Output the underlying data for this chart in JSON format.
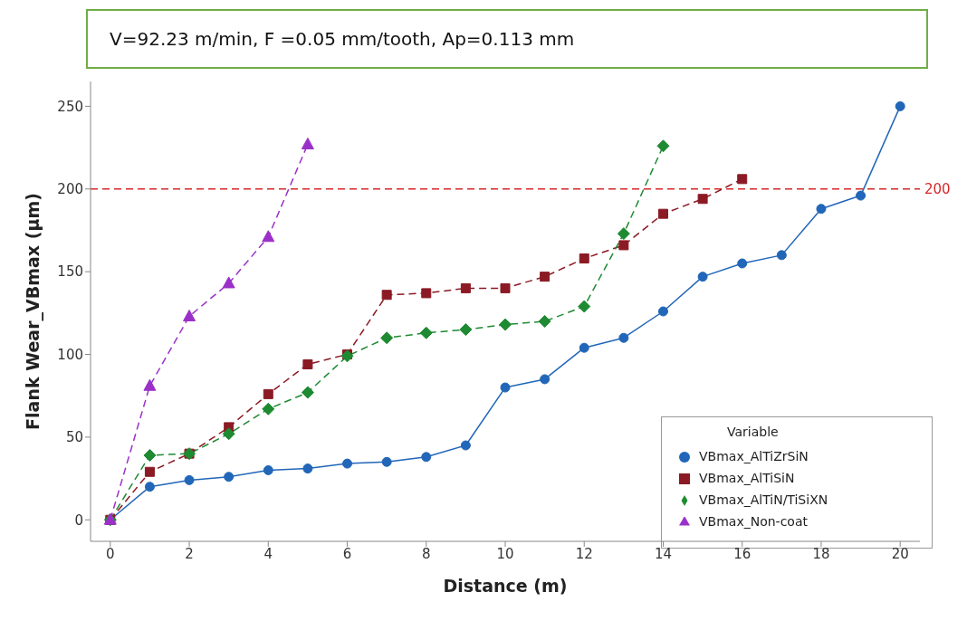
{
  "chart_data": {
    "type": "line",
    "title": "V=92.23 m/min, F =0.05 mm/tooth, Ap=0.113 mm",
    "xlabel": "Distance (m)",
    "ylabel": "Flank Wear_VBmax (µm)",
    "legend_title": "Variable",
    "legend": "bottom right",
    "grid": false,
    "xlim": [
      -0.5,
      20.5
    ],
    "xticks": [
      0,
      2,
      4,
      6,
      8,
      10,
      12,
      14,
      16,
      18,
      20
    ],
    "ylim": [
      -13,
      265
    ],
    "yticks": [
      0,
      50,
      100,
      150,
      200,
      250
    ],
    "ref_lines": [
      {
        "axis": "y",
        "value": 200,
        "label": "200",
        "color": "#d62728",
        "line_style": "dashed"
      }
    ],
    "series": [
      {
        "name": "VBmax_AlTiZrSiN",
        "color": "#2166b8",
        "marker": "circle",
        "line_style": "solid",
        "x": [
          0,
          1,
          2,
          3,
          4,
          5,
          6,
          7,
          8,
          9,
          10,
          11,
          12,
          13,
          14,
          15,
          16,
          17,
          18,
          19,
          20
        ],
        "values": [
          0,
          20,
          24,
          26,
          30,
          31,
          34,
          35,
          38,
          45,
          80,
          85,
          104,
          110,
          126,
          147,
          155,
          160,
          188,
          196,
          250
        ]
      },
      {
        "name": "VBmax_AlTiSiN",
        "color": "#8b1a24",
        "marker": "square",
        "line_style": "dashed",
        "x": [
          0,
          1,
          2,
          3,
          4,
          5,
          6,
          7,
          8,
          9,
          10,
          11,
          12,
          13,
          14,
          15,
          16
        ],
        "values": [
          0,
          29,
          40,
          56,
          76,
          94,
          100,
          136,
          137,
          140,
          140,
          147,
          158,
          166,
          185,
          194,
          206
        ]
      },
      {
        "name": "VBmax_AlTiN/TiSiXN",
        "color": "#1e8a32",
        "marker": "diamond",
        "line_style": "dashed",
        "x": [
          0,
          1,
          2,
          3,
          4,
          5,
          6,
          7,
          8,
          9,
          10,
          11,
          12,
          13,
          14
        ],
        "values": [
          0,
          39,
          40,
          52,
          67,
          77,
          99,
          110,
          113,
          115,
          118,
          120,
          129,
          173,
          226
        ]
      },
      {
        "name": "VBmax_Non-coat",
        "color": "#9b30c8",
        "marker": "triangle",
        "line_style": "dashed",
        "x": [
          0,
          1,
          2,
          3,
          4,
          5
        ],
        "values": [
          0,
          81,
          123,
          143,
          171,
          227
        ]
      }
    ]
  }
}
